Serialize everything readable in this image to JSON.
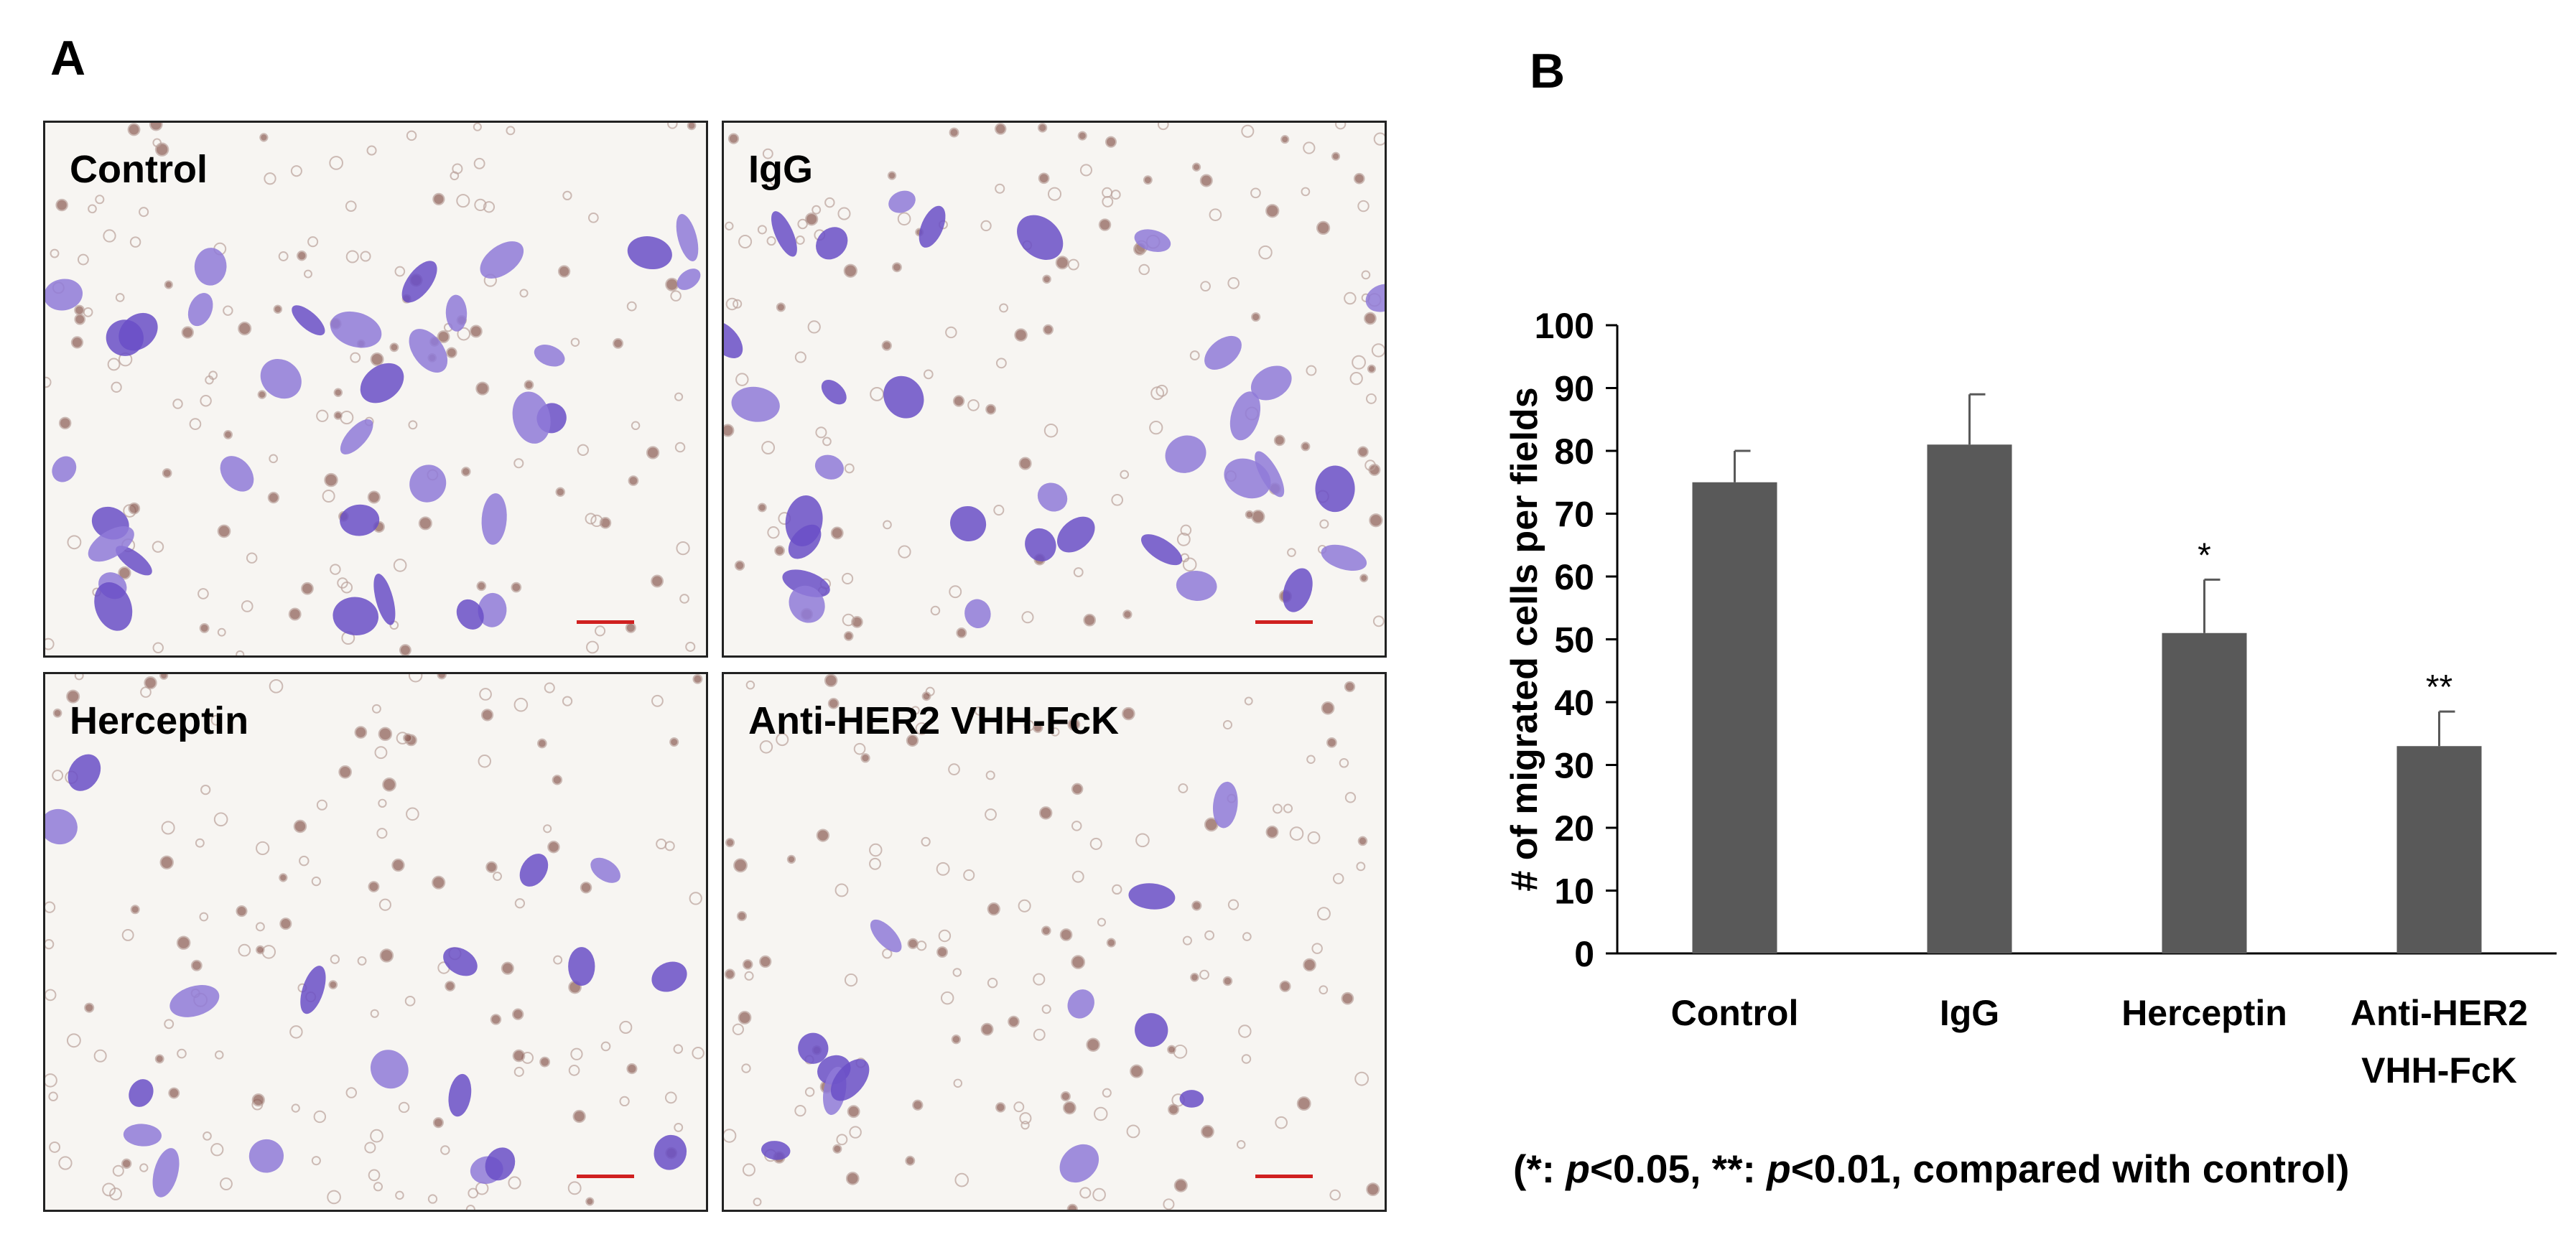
{
  "panel_a": {
    "letter": "A",
    "images": [
      {
        "label": "Control"
      },
      {
        "label": "IgG"
      },
      {
        "label": "Herceptin"
      },
      {
        "label": "Anti-HER2 VHH-FcK"
      }
    ]
  },
  "panel_b": {
    "letter": "B",
    "footnote": {
      "open": "(*: ",
      "p1": "p",
      "mid": "<0.05, **: ",
      "p2": "p",
      "end": "<0.01, compared with control)"
    }
  },
  "chart_data": {
    "type": "bar",
    "ylabel": "# of migrated cells  per  fields",
    "xlabel": "",
    "title": "",
    "ylim": [
      0,
      100
    ],
    "yticks": [
      0,
      10,
      20,
      30,
      40,
      50,
      60,
      70,
      80,
      90,
      100
    ],
    "categories": [
      [
        "Control"
      ],
      [
        "IgG"
      ],
      [
        "Herceptin"
      ],
      [
        "Anti-HER2",
        "VHH-FcK"
      ]
    ],
    "values": [
      75,
      81,
      51,
      33
    ],
    "errors": [
      5,
      8,
      8.5,
      5.5
    ],
    "significance": [
      "",
      "",
      "*",
      "**"
    ],
    "bar_color": "#595959",
    "grid": false
  }
}
